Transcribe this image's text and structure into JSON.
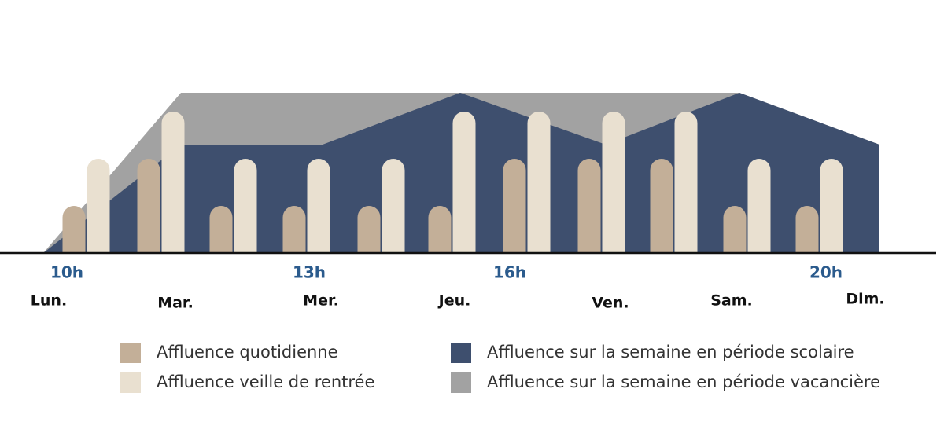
{
  "chart_data": {
    "type": "bar",
    "ylim": [
      0,
      3.5
    ],
    "categories": [
      null,
      null,
      null,
      null,
      null,
      null,
      null,
      null,
      null,
      null,
      null
    ],
    "series": [
      {
        "name": "Affluence quotidienne",
        "color": "#c3af98",
        "values": [
          1,
          2,
          1,
          1,
          1,
          1,
          2,
          2,
          2,
          1,
          1
        ]
      },
      {
        "name": "Affluence veille de rentrée",
        "color": "#e9e0d0",
        "values": [
          2,
          3,
          2,
          2,
          2,
          3,
          3,
          3,
          3,
          2,
          2
        ]
      }
    ],
    "hour_labels": [
      "10h",
      "13h",
      "16h",
      "20h"
    ],
    "areas": {
      "type": "area",
      "categories": [
        "Lun.",
        "Mar.",
        "Mer.",
        "Jeu.",
        "Ven.",
        "Sam.",
        "Dim."
      ],
      "series": [
        {
          "name": "Affluence sur la semaine en période vacancière",
          "color": "#a2a2a2",
          "values": [
            0,
            3.4,
            3.4,
            3.4,
            3.4,
            3.4,
            2.3
          ]
        },
        {
          "name": "Affluence sur la semaine en période scolaire",
          "color": "#3e4f6e",
          "values": [
            0,
            2.3,
            2.3,
            3.4,
            2.3,
            3.4,
            2.3
          ]
        }
      ]
    }
  }
}
